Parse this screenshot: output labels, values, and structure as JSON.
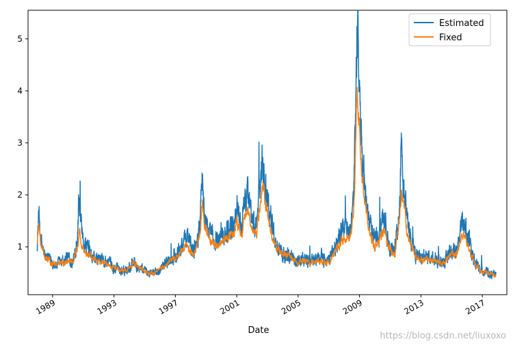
{
  "chart_data": {
    "type": "line",
    "title": "",
    "xlabel": "Date",
    "ylabel": "",
    "xlim": [
      1987.4,
      2018.6
    ],
    "ylim": [
      0.08,
      5.55
    ],
    "x_ticks": [
      {
        "value": 1989,
        "label": "1989"
      },
      {
        "value": 1993,
        "label": "1993"
      },
      {
        "value": 1997,
        "label": "1997"
      },
      {
        "value": 2001,
        "label": "2001"
      },
      {
        "value": 2005,
        "label": "2005"
      },
      {
        "value": 2009,
        "label": "2009"
      },
      {
        "value": 2013,
        "label": "2013"
      },
      {
        "value": 2017,
        "label": "2017"
      }
    ],
    "y_ticks": [
      {
        "value": 1,
        "label": "1"
      },
      {
        "value": 2,
        "label": "2"
      },
      {
        "value": 3,
        "label": "3"
      },
      {
        "value": 4,
        "label": "4"
      },
      {
        "value": 5,
        "label": "5"
      }
    ],
    "legend_position": "top-right",
    "series": [
      {
        "name": "Estimated",
        "color": "#1f77b4",
        "anchors": [
          [
            1988.0,
            1.05
          ],
          [
            1988.1,
            1.65
          ],
          [
            1988.25,
            1.1
          ],
          [
            1988.5,
            0.8
          ],
          [
            1988.8,
            0.75
          ],
          [
            1989.2,
            0.65
          ],
          [
            1989.6,
            0.7
          ],
          [
            1990.0,
            0.8
          ],
          [
            1990.3,
            0.75
          ],
          [
            1990.6,
            1.1
          ],
          [
            1990.75,
            1.9
          ],
          [
            1990.9,
            1.2
          ],
          [
            1991.2,
            1.0
          ],
          [
            1991.6,
            0.8
          ],
          [
            1992.0,
            0.75
          ],
          [
            1992.5,
            0.7
          ],
          [
            1993.0,
            0.6
          ],
          [
            1993.5,
            0.55
          ],
          [
            1994.0,
            0.6
          ],
          [
            1994.3,
            0.75
          ],
          [
            1994.7,
            0.6
          ],
          [
            1995.2,
            0.5
          ],
          [
            1995.7,
            0.5
          ],
          [
            1996.3,
            0.65
          ],
          [
            1996.7,
            0.75
          ],
          [
            1997.2,
            0.9
          ],
          [
            1997.8,
            1.2
          ],
          [
            1998.2,
            0.9
          ],
          [
            1998.6,
            1.4
          ],
          [
            1998.75,
            2.3
          ],
          [
            1998.95,
            1.5
          ],
          [
            1999.3,
            1.2
          ],
          [
            1999.8,
            1.15
          ],
          [
            2000.3,
            1.3
          ],
          [
            2000.8,
            1.4
          ],
          [
            2001.0,
            1.8
          ],
          [
            2001.3,
            1.4
          ],
          [
            2001.7,
            2.0
          ],
          [
            2002.0,
            1.5
          ],
          [
            2002.3,
            1.4
          ],
          [
            2002.55,
            2.4
          ],
          [
            2002.7,
            2.7
          ],
          [
            2002.9,
            2.2
          ],
          [
            2003.2,
            1.6
          ],
          [
            2003.6,
            1.0
          ],
          [
            2004.0,
            0.9
          ],
          [
            2004.5,
            0.8
          ],
          [
            2005.0,
            0.75
          ],
          [
            2005.5,
            0.75
          ],
          [
            2006.0,
            0.75
          ],
          [
            2006.5,
            0.8
          ],
          [
            2007.0,
            0.7
          ],
          [
            2007.5,
            1.1
          ],
          [
            2007.8,
            1.3
          ],
          [
            2008.0,
            1.4
          ],
          [
            2008.3,
            1.3
          ],
          [
            2008.6,
            1.7
          ],
          [
            2008.72,
            3.2
          ],
          [
            2008.8,
            4.6
          ],
          [
            2008.85,
            5.28
          ],
          [
            2008.95,
            4.5
          ],
          [
            2009.05,
            3.5
          ],
          [
            2009.2,
            2.6
          ],
          [
            2009.4,
            1.9
          ],
          [
            2009.6,
            1.5
          ],
          [
            2010.0,
            1.1
          ],
          [
            2010.4,
            1.4
          ],
          [
            2010.6,
            1.5
          ],
          [
            2010.9,
            1.0
          ],
          [
            2011.3,
            0.9
          ],
          [
            2011.6,
            1.7
          ],
          [
            2011.72,
            2.9
          ],
          [
            2011.9,
            2.0
          ],
          [
            2012.2,
            1.3
          ],
          [
            2012.6,
            0.9
          ],
          [
            2013.0,
            0.8
          ],
          [
            2013.5,
            0.8
          ],
          [
            2014.0,
            0.75
          ],
          [
            2014.5,
            0.7
          ],
          [
            2014.9,
            0.9
          ],
          [
            2015.3,
            0.9
          ],
          [
            2015.7,
            1.5
          ],
          [
            2016.0,
            1.3
          ],
          [
            2016.3,
            0.85
          ],
          [
            2016.6,
            0.7
          ],
          [
            2017.0,
            0.55
          ],
          [
            2017.5,
            0.5
          ],
          [
            2017.9,
            0.45
          ]
        ]
      },
      {
        "name": "Fixed",
        "color": "#ff7f0e",
        "anchors": [
          [
            1988.0,
            1.05
          ],
          [
            1988.1,
            1.45
          ],
          [
            1988.25,
            1.0
          ],
          [
            1988.5,
            0.8
          ],
          [
            1988.8,
            0.72
          ],
          [
            1989.2,
            0.65
          ],
          [
            1989.6,
            0.68
          ],
          [
            1990.0,
            0.75
          ],
          [
            1990.3,
            0.72
          ],
          [
            1990.6,
            0.95
          ],
          [
            1990.75,
            1.3
          ],
          [
            1990.9,
            1.0
          ],
          [
            1991.2,
            0.9
          ],
          [
            1991.6,
            0.78
          ],
          [
            1992.0,
            0.72
          ],
          [
            1992.5,
            0.68
          ],
          [
            1993.0,
            0.6
          ],
          [
            1993.5,
            0.55
          ],
          [
            1994.0,
            0.58
          ],
          [
            1994.3,
            0.7
          ],
          [
            1994.7,
            0.58
          ],
          [
            1995.2,
            0.5
          ],
          [
            1995.7,
            0.5
          ],
          [
            1996.3,
            0.62
          ],
          [
            1996.7,
            0.72
          ],
          [
            1997.2,
            0.85
          ],
          [
            1997.8,
            1.05
          ],
          [
            1998.2,
            0.85
          ],
          [
            1998.6,
            1.2
          ],
          [
            1998.75,
            1.85
          ],
          [
            1998.95,
            1.35
          ],
          [
            1999.3,
            1.1
          ],
          [
            1999.8,
            1.05
          ],
          [
            2000.3,
            1.15
          ],
          [
            2000.8,
            1.25
          ],
          [
            2001.0,
            1.55
          ],
          [
            2001.3,
            1.25
          ],
          [
            2001.7,
            1.65
          ],
          [
            2002.0,
            1.3
          ],
          [
            2002.3,
            1.25
          ],
          [
            2002.55,
            1.9
          ],
          [
            2002.7,
            2.2
          ],
          [
            2002.9,
            1.8
          ],
          [
            2003.2,
            1.35
          ],
          [
            2003.6,
            0.95
          ],
          [
            2004.0,
            0.85
          ],
          [
            2004.5,
            0.78
          ],
          [
            2005.0,
            0.72
          ],
          [
            2005.5,
            0.72
          ],
          [
            2006.0,
            0.72
          ],
          [
            2006.5,
            0.75
          ],
          [
            2007.0,
            0.68
          ],
          [
            2007.5,
            0.95
          ],
          [
            2007.8,
            1.1
          ],
          [
            2008.0,
            1.2
          ],
          [
            2008.3,
            1.15
          ],
          [
            2008.6,
            1.45
          ],
          [
            2008.72,
            2.6
          ],
          [
            2008.8,
            3.6
          ],
          [
            2008.85,
            4.0
          ],
          [
            2008.95,
            3.5
          ],
          [
            2009.05,
            2.9
          ],
          [
            2009.2,
            2.2
          ],
          [
            2009.4,
            1.7
          ],
          [
            2009.6,
            1.35
          ],
          [
            2010.0,
            1.0
          ],
          [
            2010.4,
            1.2
          ],
          [
            2010.6,
            1.3
          ],
          [
            2010.9,
            0.95
          ],
          [
            2011.3,
            0.85
          ],
          [
            2011.6,
            1.5
          ],
          [
            2011.72,
            2.1
          ],
          [
            2011.9,
            1.7
          ],
          [
            2012.2,
            1.15
          ],
          [
            2012.6,
            0.85
          ],
          [
            2013.0,
            0.75
          ],
          [
            2013.5,
            0.75
          ],
          [
            2014.0,
            0.72
          ],
          [
            2014.5,
            0.68
          ],
          [
            2014.9,
            0.82
          ],
          [
            2015.3,
            0.82
          ],
          [
            2015.7,
            1.25
          ],
          [
            2016.0,
            1.1
          ],
          [
            2016.3,
            0.8
          ],
          [
            2016.6,
            0.65
          ],
          [
            2017.0,
            0.52
          ],
          [
            2017.5,
            0.48
          ],
          [
            2017.9,
            0.45
          ]
        ]
      }
    ]
  },
  "watermark": "https://blog.csdn.net/liuxoxo"
}
